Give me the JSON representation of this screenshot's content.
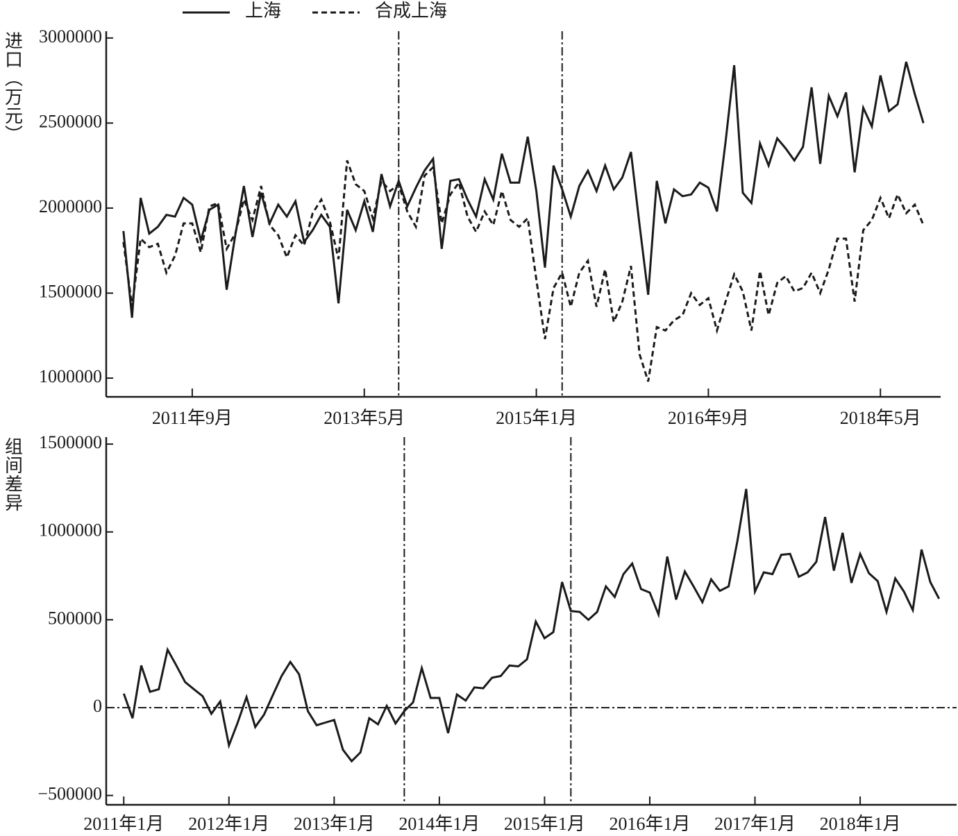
{
  "chart_data": [
    {
      "type": "line",
      "legend": "top",
      "ylabel": "进口（万元）",
      "x": [
        "2011-01",
        "2011-02",
        "2011-03",
        "2011-04",
        "2011-05",
        "2011-06",
        "2011-07",
        "2011-08",
        "2011-09",
        "2011-10",
        "2011-11",
        "2011-12",
        "2012-01",
        "2012-02",
        "2012-03",
        "2012-04",
        "2012-05",
        "2012-06",
        "2012-07",
        "2012-08",
        "2012-09",
        "2012-10",
        "2012-11",
        "2012-12",
        "2013-01",
        "2013-02",
        "2013-03",
        "2013-04",
        "2013-05",
        "2013-06",
        "2013-07",
        "2013-08",
        "2013-09",
        "2013-10",
        "2013-11",
        "2013-12",
        "2014-01",
        "2014-02",
        "2014-03",
        "2014-04",
        "2014-05",
        "2014-06",
        "2014-07",
        "2014-08",
        "2014-09",
        "2014-10",
        "2014-11",
        "2014-12",
        "2015-01",
        "2015-02",
        "2015-03",
        "2015-04",
        "2015-05",
        "2015-06",
        "2015-07",
        "2015-08",
        "2015-09",
        "2015-10",
        "2015-11",
        "2015-12",
        "2016-01",
        "2016-02",
        "2016-03",
        "2016-04",
        "2016-05",
        "2016-06",
        "2016-07",
        "2016-08",
        "2016-09",
        "2016-10",
        "2016-11",
        "2016-12",
        "2017-01",
        "2017-02",
        "2017-03",
        "2017-04",
        "2017-05",
        "2017-06",
        "2017-07",
        "2017-08",
        "2017-09",
        "2017-10",
        "2017-11",
        "2017-12",
        "2018-01",
        "2018-02",
        "2018-03",
        "2018-04",
        "2018-05",
        "2018-06",
        "2018-07",
        "2018-08",
        "2018-09",
        "2018-10"
      ],
      "series": [
        {
          "name": "上海",
          "color": "#1a1a1a",
          "dash": "solid",
          "values": [
            1865000,
            1355000,
            2060000,
            1850000,
            1890000,
            1960000,
            1950000,
            2060000,
            2020000,
            1810000,
            1990000,
            2020000,
            1520000,
            1840000,
            2130000,
            1830000,
            2090000,
            1910000,
            2020000,
            1950000,
            2040000,
            1800000,
            1870000,
            1960000,
            1890000,
            1440000,
            1990000,
            1870000,
            2040000,
            1860000,
            2200000,
            2010000,
            2160000,
            2010000,
            2120000,
            2220000,
            2290000,
            1760000,
            2160000,
            2170000,
            2050000,
            1950000,
            2170000,
            2050000,
            2320000,
            2150000,
            2150000,
            2420000,
            2100000,
            1650000,
            2250000,
            2110000,
            1950000,
            2130000,
            2220000,
            2100000,
            2250000,
            2110000,
            2180000,
            2330000,
            1900000,
            1490000,
            2160000,
            1910000,
            2110000,
            2070000,
            2080000,
            2150000,
            2120000,
            1980000,
            2390000,
            2840000,
            2090000,
            2030000,
            2380000,
            2250000,
            2410000,
            2350000,
            2280000,
            2360000,
            2710000,
            2260000,
            2660000,
            2540000,
            2680000,
            2210000,
            2590000,
            2480000,
            2780000,
            2570000,
            2610000,
            2860000,
            2670000,
            2500000
          ]
        },
        {
          "name": "合成上海",
          "color": "#1a1a1a",
          "dash": "dashed",
          "values": [
            1800000,
            1420000,
            1820000,
            1770000,
            1790000,
            1620000,
            1720000,
            1910000,
            1910000,
            1740000,
            2010000,
            2030000,
            1760000,
            1850000,
            2050000,
            1930000,
            2130000,
            1900000,
            1840000,
            1710000,
            1840000,
            1780000,
            1970000,
            2050000,
            1920000,
            1700000,
            2280000,
            2140000,
            2100000,
            1940000,
            2160000,
            2100000,
            2140000,
            1980000,
            1890000,
            2190000,
            2240000,
            1910000,
            2080000,
            2150000,
            1950000,
            1860000,
            1980000,
            1900000,
            2100000,
            1930000,
            1890000,
            1940000,
            1580000,
            1230000,
            1530000,
            1620000,
            1420000,
            1620000,
            1690000,
            1420000,
            1640000,
            1330000,
            1450000,
            1660000,
            1140000,
            980000,
            1300000,
            1280000,
            1340000,
            1370000,
            1500000,
            1430000,
            1470000,
            1280000,
            1450000,
            1610000,
            1510000,
            1280000,
            1630000,
            1370000,
            1560000,
            1600000,
            1510000,
            1530000,
            1620000,
            1500000,
            1640000,
            1820000,
            1820000,
            1450000,
            1870000,
            1930000,
            2060000,
            1940000,
            2080000,
            1970000,
            2020000,
            1900000
          ]
        }
      ],
      "xlim": [
        "2010-11",
        "2018-12"
      ],
      "xticks": [
        {
          "value": "2011-09",
          "label": "2011年9月"
        },
        {
          "value": "2013-05",
          "label": "2013年5月"
        },
        {
          "value": "2015-01",
          "label": "2015年1月"
        },
        {
          "value": "2016-09",
          "label": "2016年9月"
        },
        {
          "value": "2018-05",
          "label": "2018年5月"
        }
      ],
      "ylim": [
        890000,
        3040000
      ],
      "yticks": [
        1000000,
        1500000,
        2000000,
        2500000,
        3000000
      ],
      "vlines": [
        "2013-09",
        "2015-04"
      ]
    },
    {
      "type": "line",
      "ylabel": "组间差异",
      "color": "#1a1a1a",
      "x": [
        "2011-01",
        "2011-02",
        "2011-03",
        "2011-04",
        "2011-05",
        "2011-06",
        "2011-07",
        "2011-08",
        "2011-09",
        "2011-10",
        "2011-11",
        "2011-12",
        "2012-01",
        "2012-02",
        "2012-03",
        "2012-04",
        "2012-05",
        "2012-06",
        "2012-07",
        "2012-08",
        "2012-09",
        "2012-10",
        "2012-11",
        "2012-12",
        "2013-01",
        "2013-02",
        "2013-03",
        "2013-04",
        "2013-05",
        "2013-06",
        "2013-07",
        "2013-08",
        "2013-09",
        "2013-10",
        "2013-11",
        "2013-12",
        "2014-01",
        "2014-02",
        "2014-03",
        "2014-04",
        "2014-05",
        "2014-06",
        "2014-07",
        "2014-08",
        "2014-09",
        "2014-10",
        "2014-11",
        "2014-12",
        "2015-01",
        "2015-02",
        "2015-03",
        "2015-04",
        "2015-05",
        "2015-06",
        "2015-07",
        "2015-08",
        "2015-09",
        "2015-10",
        "2015-11",
        "2015-12",
        "2016-01",
        "2016-02",
        "2016-03",
        "2016-04",
        "2016-05",
        "2016-06",
        "2016-07",
        "2016-08",
        "2016-09",
        "2016-10",
        "2016-11",
        "2016-12",
        "2017-01",
        "2017-02",
        "2017-03",
        "2017-04",
        "2017-05",
        "2017-06",
        "2017-07",
        "2017-08",
        "2017-09",
        "2017-10",
        "2017-11",
        "2017-12",
        "2018-01",
        "2018-02",
        "2018-03",
        "2018-04",
        "2018-05",
        "2018-06",
        "2018-07",
        "2018-08",
        "2018-09",
        "2018-10"
      ],
      "values": [
        80000,
        -60000,
        240000,
        90000,
        105000,
        330000,
        240000,
        145000,
        105000,
        65000,
        -35000,
        35000,
        -215000,
        -85000,
        60000,
        -110000,
        -40000,
        70000,
        180000,
        260000,
        190000,
        -20000,
        -100000,
        -85000,
        -70000,
        -240000,
        -305000,
        -255000,
        -60000,
        -95000,
        10000,
        -90000,
        -20000,
        30000,
        225000,
        55000,
        55000,
        -145000,
        75000,
        40000,
        115000,
        110000,
        170000,
        180000,
        240000,
        235000,
        275000,
        490000,
        395000,
        430000,
        715000,
        550000,
        545000,
        500000,
        545000,
        690000,
        630000,
        760000,
        820000,
        675000,
        655000,
        530000,
        860000,
        615000,
        775000,
        690000,
        600000,
        730000,
        665000,
        690000,
        950000,
        1245000,
        660000,
        770000,
        760000,
        870000,
        875000,
        745000,
        770000,
        830000,
        1085000,
        780000,
        995000,
        710000,
        875000,
        765000,
        720000,
        545000,
        735000,
        660000,
        555000,
        900000,
        715000,
        620000
      ],
      "xlim": [
        "2010-11",
        "2018-12"
      ],
      "xticks": [
        {
          "value": "2011-01",
          "label": "2011年1月"
        },
        {
          "value": "2012-01",
          "label": "2012年1月"
        },
        {
          "value": "2013-01",
          "label": "2013年1月"
        },
        {
          "value": "2014-01",
          "label": "2014年1月"
        },
        {
          "value": "2015-01",
          "label": "2015年1月"
        },
        {
          "value": "2016-01",
          "label": "2016年1月"
        },
        {
          "value": "2017-01",
          "label": "2017年1月"
        },
        {
          "value": "2018-01",
          "label": "2018年1月"
        }
      ],
      "ylim": [
        -553000,
        1540000
      ],
      "yticks": [
        {
          "value": -500000,
          "label": "−500000"
        },
        0,
        500000,
        1000000,
        1500000
      ],
      "vlines": [
        "2013-09",
        "2015-04"
      ],
      "hlines": [
        0
      ]
    }
  ]
}
